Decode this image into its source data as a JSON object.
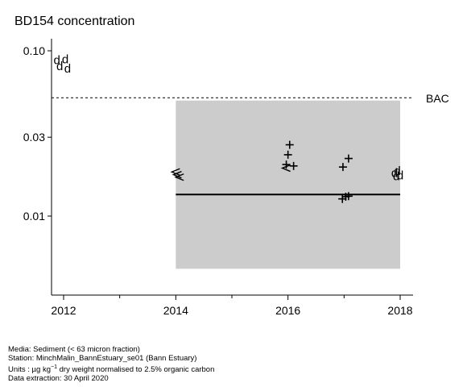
{
  "title": "BD154 concentration",
  "chart_data": {
    "type": "scatter",
    "title": "BD154 concentration",
    "y_scale": "log",
    "ylim": [
      0.0044,
      0.12
    ],
    "xlim": [
      2011.8,
      2018.25
    ],
    "yticks": [
      0.01,
      0.03,
      0.1
    ],
    "ytick_labels": [
      "0.01",
      "0.03",
      "0.10"
    ],
    "xticks": [
      2012,
      2014,
      2016,
      2018
    ],
    "xtick_labels": [
      "2012",
      "2014",
      "2016",
      "2018"
    ],
    "x_minor_ticks": [
      2013,
      2015,
      2017
    ],
    "grid": false,
    "reference_line": {
      "label": "BAC",
      "y": 0.052,
      "style": "dashed"
    },
    "shaded_region": {
      "x": [
        2014,
        2018
      ],
      "y": [
        0.0048,
        0.05
      ],
      "color": "#cccccc"
    },
    "trend_line": {
      "x": [
        2014,
        2018
      ],
      "y": [
        0.0135,
        0.0135
      ]
    },
    "points": [
      {
        "x": 2011.88,
        "y": 0.088,
        "marker": "d"
      },
      {
        "x": 2012.03,
        "y": 0.089,
        "marker": "d"
      },
      {
        "x": 2011.93,
        "y": 0.081,
        "marker": "d"
      },
      {
        "x": 2012.07,
        "y": 0.078,
        "marker": "d"
      },
      {
        "x": 2014.0,
        "y": 0.0185,
        "marker": "<"
      },
      {
        "x": 2014.03,
        "y": 0.0178,
        "marker": "<"
      },
      {
        "x": 2014.07,
        "y": 0.0172,
        "marker": "<"
      },
      {
        "x": 2015.97,
        "y": 0.0195,
        "marker": "<"
      },
      {
        "x": 2016.03,
        "y": 0.027,
        "marker": "+"
      },
      {
        "x": 2016.0,
        "y": 0.0235,
        "marker": "+"
      },
      {
        "x": 2015.97,
        "y": 0.0205,
        "marker": "+"
      },
      {
        "x": 2016.1,
        "y": 0.0201,
        "marker": "+"
      },
      {
        "x": 2016.98,
        "y": 0.0198,
        "marker": "+"
      },
      {
        "x": 2017.08,
        "y": 0.0223,
        "marker": "+"
      },
      {
        "x": 2016.97,
        "y": 0.0127,
        "marker": "+"
      },
      {
        "x": 2017.08,
        "y": 0.0132,
        "marker": "+"
      },
      {
        "x": 2017.03,
        "y": 0.0131,
        "marker": "+"
      },
      {
        "x": 2017.9,
        "y": 0.0182,
        "marker": "d"
      },
      {
        "x": 2017.95,
        "y": 0.0188,
        "marker": "d"
      },
      {
        "x": 2018.0,
        "y": 0.0176,
        "marker": "d"
      },
      {
        "x": 2017.93,
        "y": 0.0174,
        "marker": "d"
      }
    ]
  },
  "footer": {
    "media": "Media: Sediment (< 63 micron fraction)",
    "station": "Station: MinchMalin_BannEstuary_se01 (Bann Estuary)",
    "units_prefix": "Units : µg kg",
    "units_sup": "−1",
    "units_suffix": " dry weight normalised to 2.5% organic carbon",
    "extraction": "Data extraction: 30 April 2020"
  }
}
